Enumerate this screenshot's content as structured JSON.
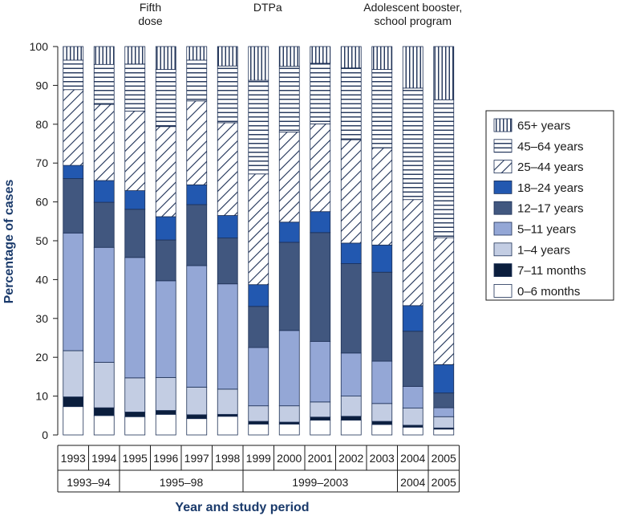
{
  "chart_data": {
    "type": "bar",
    "stacked": true,
    "ylabel": "Percentage of cases",
    "xlabel": "Year and study period",
    "ylim": [
      0,
      100
    ],
    "yticks": [
      0,
      10,
      20,
      30,
      40,
      50,
      60,
      70,
      80,
      90,
      100
    ],
    "categories": [
      "1993",
      "1994",
      "1995",
      "1996",
      "1997",
      "1998",
      "1999",
      "2000",
      "2001",
      "2002",
      "2003",
      "2004",
      "2005"
    ],
    "periods": [
      {
        "label": "1993–94",
        "from": 0,
        "to": 1
      },
      {
        "label": "1995–98",
        "from": 2,
        "to": 5
      },
      {
        "label": "1999–2003",
        "from": 6,
        "to": 10
      },
      {
        "label": "2004",
        "from": 11,
        "to": 11
      },
      {
        "label": "2005",
        "from": 12,
        "to": 12
      }
    ],
    "annotations": [
      {
        "lines": [
          "Fifth",
          "dose"
        ],
        "at_category": 2.5
      },
      {
        "lines": [
          "DTPa"
        ],
        "at_category": 6.3
      },
      {
        "lines": [
          "Adolescent booster,",
          "school program"
        ],
        "at_category": 11.0
      }
    ],
    "legend_position": "right",
    "series": [
      {
        "name": "0–6 months",
        "pattern": "white",
        "values": [
          7.3,
          5.0,
          4.7,
          5.3,
          4.2,
          4.8,
          2.8,
          2.8,
          3.8,
          3.8,
          2.7,
          2.0,
          1.5
        ]
      },
      {
        "name": "7–11 months",
        "pattern": "black",
        "values": [
          2.5,
          2.0,
          1.2,
          1.0,
          1.0,
          0.5,
          0.7,
          0.5,
          0.8,
          1.0,
          0.8,
          0.5,
          0.3
        ]
      },
      {
        "name": "1–4 years",
        "pattern": "lightblue",
        "values": [
          11.9,
          11.7,
          8.8,
          8.5,
          7.1,
          6.5,
          4.0,
          4.2,
          3.9,
          5.2,
          4.6,
          4.4,
          2.9
        ]
      },
      {
        "name": "5–11 years",
        "pattern": "midblue",
        "values": [
          30.3,
          29.6,
          31.0,
          24.9,
          31.3,
          27.1,
          15.0,
          19.4,
          15.6,
          11.1,
          10.9,
          5.6,
          2.3
        ]
      },
      {
        "name": "12–17 years",
        "pattern": "darkblue",
        "values": [
          14.0,
          11.6,
          12.4,
          10.5,
          15.7,
          11.8,
          10.6,
          22.7,
          28.0,
          23.0,
          22.9,
          14.2,
          3.8
        ]
      },
      {
        "name": "18–24 years",
        "pattern": "brightblue",
        "values": [
          3.4,
          5.6,
          4.8,
          6.0,
          5.1,
          5.8,
          5.6,
          5.2,
          5.4,
          5.3,
          7.0,
          6.6,
          7.3
        ]
      },
      {
        "name": "25–44 years",
        "pattern": "diagonal",
        "values": [
          19.5,
          19.6,
          20.5,
          23.2,
          21.6,
          23.9,
          28.5,
          23.2,
          22.6,
          26.6,
          25.0,
          27.3,
          32.7
        ]
      },
      {
        "name": "45–64 years",
        "pattern": "horizontal",
        "values": [
          7.6,
          10.3,
          12.1,
          14.7,
          10.5,
          14.6,
          24.1,
          16.9,
          15.6,
          18.5,
          20.2,
          28.7,
          35.5
        ]
      },
      {
        "name": "65+ years",
        "pattern": "vertical",
        "values": [
          3.5,
          4.6,
          4.5,
          5.9,
          3.5,
          5.0,
          8.7,
          5.1,
          4.3,
          5.5,
          5.9,
          10.7,
          13.7
        ]
      }
    ],
    "colors": {
      "black": "#0b1e3d",
      "lightblue": "#c3cde3",
      "midblue": "#94a7d6",
      "darkblue": "#41577f",
      "brightblue": "#2258b0",
      "stroke": "#1c2f55",
      "axis": "#1a1a1a",
      "title": "#1a3a6b"
    }
  }
}
